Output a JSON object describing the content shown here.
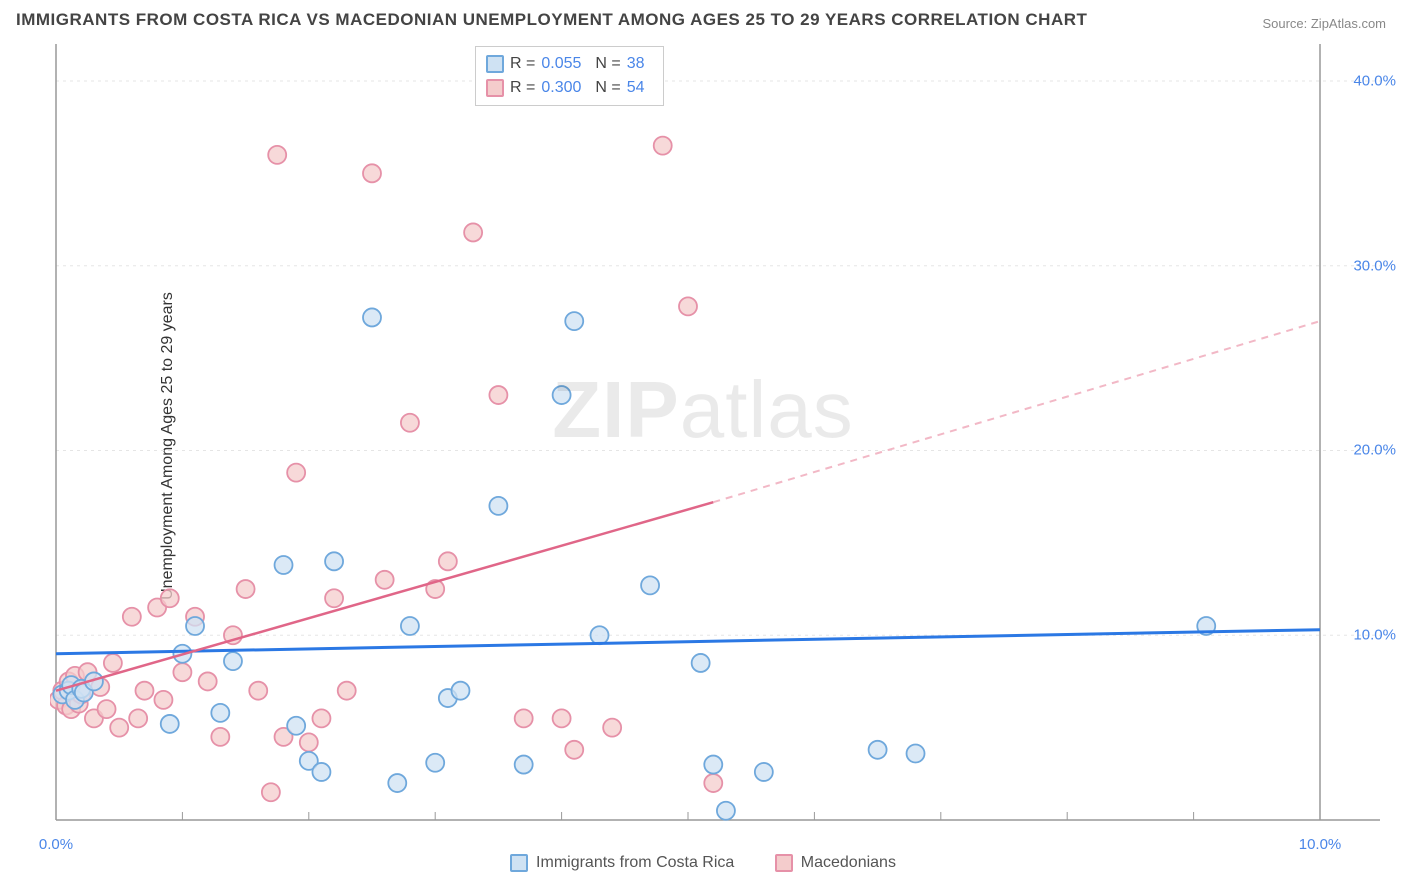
{
  "title": "IMMIGRANTS FROM COSTA RICA VS MACEDONIAN UNEMPLOYMENT AMONG AGES 25 TO 29 YEARS CORRELATION CHART",
  "source": "Source: ZipAtlas.com",
  "ylabel": "Unemployment Among Ages 25 to 29 years",
  "watermark_bold": "ZIP",
  "watermark_light": "atlas",
  "chart": {
    "type": "scatter",
    "xlim": [
      0,
      10
    ],
    "ylim": [
      0,
      42
    ],
    "xticks": [
      0,
      1,
      2,
      3,
      4,
      5,
      6,
      7,
      8,
      9,
      10
    ],
    "xtick_labels": {
      "0": "0.0%",
      "10": "10.0%"
    },
    "yticks": [
      10,
      20,
      30,
      40
    ],
    "ytick_labels": {
      "10": "10.0%",
      "20": "20.0%",
      "30": "30.0%",
      "40": "40.0%"
    },
    "grid_color": "#e5e5e5",
    "axis_color": "#999999",
    "background_color": "#ffffff",
    "series": [
      {
        "name": "Immigrants from Costa Rica",
        "color_stroke": "#6fa8dc",
        "color_fill": "#cfe2f3",
        "marker_radius": 9,
        "r_value": "0.055",
        "n_value": "38",
        "trend": {
          "x1": 0,
          "y1": 9.0,
          "x2": 10,
          "y2": 10.3,
          "color": "#2b78e4",
          "width": 3
        },
        "points": [
          [
            0.05,
            6.8
          ],
          [
            0.1,
            7.0
          ],
          [
            0.12,
            7.3
          ],
          [
            0.15,
            6.5
          ],
          [
            0.2,
            7.1
          ],
          [
            0.22,
            6.9
          ],
          [
            0.3,
            7.5
          ],
          [
            0.9,
            5.2
          ],
          [
            1.0,
            9.0
          ],
          [
            1.1,
            10.5
          ],
          [
            1.3,
            5.8
          ],
          [
            1.4,
            8.6
          ],
          [
            1.8,
            13.8
          ],
          [
            1.9,
            5.1
          ],
          [
            2.0,
            3.2
          ],
          [
            2.1,
            2.6
          ],
          [
            2.2,
            14.0
          ],
          [
            2.5,
            27.2
          ],
          [
            2.7,
            2.0
          ],
          [
            2.8,
            10.5
          ],
          [
            3.0,
            3.1
          ],
          [
            3.1,
            6.6
          ],
          [
            3.2,
            7.0
          ],
          [
            3.5,
            17.0
          ],
          [
            3.7,
            3.0
          ],
          [
            4.0,
            23.0
          ],
          [
            4.1,
            27.0
          ],
          [
            4.3,
            10.0
          ],
          [
            4.7,
            12.7
          ],
          [
            5.1,
            8.5
          ],
          [
            5.2,
            3.0
          ],
          [
            5.3,
            0.5
          ],
          [
            5.6,
            2.6
          ],
          [
            6.5,
            3.8
          ],
          [
            6.8,
            3.6
          ],
          [
            9.1,
            10.5
          ]
        ]
      },
      {
        "name": "Macedonians",
        "color_stroke": "#e691a8",
        "color_fill": "#f4cccc",
        "marker_radius": 9,
        "r_value": "0.300",
        "n_value": "54",
        "trend_solid": {
          "x1": 0,
          "y1": 7.0,
          "x2": 5.2,
          "y2": 17.2,
          "color": "#e06688",
          "width": 2.5
        },
        "trend_dash": {
          "x1": 5.2,
          "y1": 17.2,
          "x2": 10,
          "y2": 27.0,
          "color": "#f2b8c6",
          "width": 2
        },
        "points": [
          [
            0.02,
            6.5
          ],
          [
            0.05,
            7.0
          ],
          [
            0.08,
            6.2
          ],
          [
            0.1,
            7.5
          ],
          [
            0.12,
            6.0
          ],
          [
            0.15,
            7.8
          ],
          [
            0.18,
            6.3
          ],
          [
            0.2,
            6.8
          ],
          [
            0.25,
            8.0
          ],
          [
            0.3,
            5.5
          ],
          [
            0.35,
            7.2
          ],
          [
            0.4,
            6.0
          ],
          [
            0.45,
            8.5
          ],
          [
            0.5,
            5.0
          ],
          [
            0.6,
            11.0
          ],
          [
            0.65,
            5.5
          ],
          [
            0.7,
            7.0
          ],
          [
            0.8,
            11.5
          ],
          [
            0.85,
            6.5
          ],
          [
            0.9,
            12.0
          ],
          [
            1.0,
            8.0
          ],
          [
            1.1,
            11.0
          ],
          [
            1.2,
            7.5
          ],
          [
            1.3,
            4.5
          ],
          [
            1.4,
            10.0
          ],
          [
            1.5,
            12.5
          ],
          [
            1.6,
            7.0
          ],
          [
            1.7,
            1.5
          ],
          [
            1.75,
            36.0
          ],
          [
            1.8,
            4.5
          ],
          [
            1.9,
            18.8
          ],
          [
            2.0,
            4.2
          ],
          [
            2.1,
            5.5
          ],
          [
            2.2,
            12.0
          ],
          [
            2.3,
            7.0
          ],
          [
            2.5,
            35.0
          ],
          [
            2.6,
            13.0
          ],
          [
            2.8,
            21.5
          ],
          [
            3.0,
            12.5
          ],
          [
            3.1,
            14.0
          ],
          [
            3.3,
            31.8
          ],
          [
            3.5,
            23.0
          ],
          [
            3.7,
            5.5
          ],
          [
            4.0,
            5.5
          ],
          [
            4.1,
            3.8
          ],
          [
            4.4,
            5.0
          ],
          [
            4.8,
            36.5
          ],
          [
            5.0,
            27.8
          ],
          [
            5.2,
            2.0
          ]
        ]
      }
    ]
  },
  "legend_bottom": [
    {
      "label": "Immigrants from Costa Rica",
      "fill": "#cfe2f3",
      "stroke": "#6fa8dc"
    },
    {
      "label": "Macedonians",
      "fill": "#f4cccc",
      "stroke": "#e691a8"
    }
  ]
}
